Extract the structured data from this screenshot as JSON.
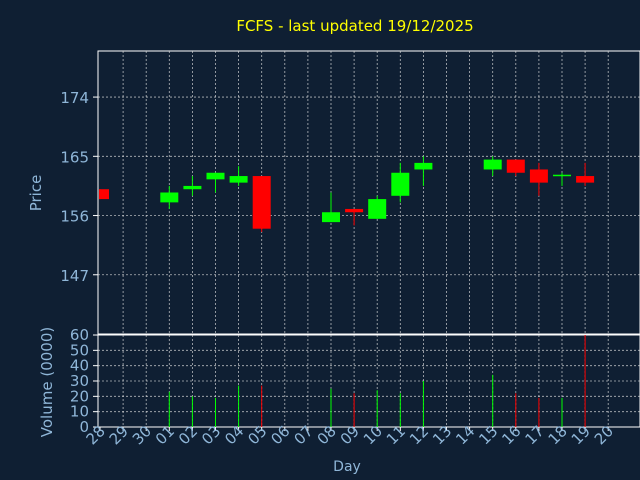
{
  "title": "FCFS - last updated 19/12/2025",
  "colors": {
    "background": "#0f1f33",
    "plot_background": "#0f1f33",
    "border": "#ffffff",
    "grid": "#dddddd",
    "title": "#ffff00",
    "text": "#8fb6d8",
    "up": "#00ff00",
    "down": "#ff0000"
  },
  "chart_data": [
    {
      "type": "candlestick",
      "title": "FCFS - last updated 19/12/2025",
      "ylabel": "Price",
      "ylim": [
        138,
        181
      ],
      "yticks": [
        147,
        156,
        165,
        174
      ],
      "grid": true,
      "categories": [
        "28",
        "29",
        "30",
        "01",
        "02",
        "03",
        "04",
        "05",
        "06",
        "07",
        "08",
        "09",
        "10",
        "11",
        "12",
        "13",
        "14",
        "15",
        "16",
        "17",
        "18",
        "19",
        "20"
      ],
      "series": [
        {
          "ohlc": [
            {
              "x": "28",
              "open": 160.0,
              "high": 160.0,
              "low": 158.5,
              "close": 158.5
            },
            {
              "x": "01",
              "open": 158.0,
              "high": 160.5,
              "low": 157.0,
              "close": 159.5
            },
            {
              "x": "02",
              "open": 160.0,
              "high": 162.0,
              "low": 159.0,
              "close": 160.5
            },
            {
              "x": "03",
              "open": 161.5,
              "high": 162.5,
              "low": 159.5,
              "close": 162.5
            },
            {
              "x": "04",
              "open": 161.0,
              "high": 163.5,
              "low": 160.5,
              "close": 162.0
            },
            {
              "x": "05",
              "open": 162.0,
              "high": 162.0,
              "low": 153.5,
              "close": 154.0
            },
            {
              "x": "08",
              "open": 155.0,
              "high": 159.5,
              "low": 155.0,
              "close": 156.5
            },
            {
              "x": "09",
              "open": 157.0,
              "high": 157.0,
              "low": 154.5,
              "close": 156.5
            },
            {
              "x": "10",
              "open": 155.5,
              "high": 159.0,
              "low": 155.5,
              "close": 158.5
            },
            {
              "x": "11",
              "open": 159.0,
              "high": 164.0,
              "low": 158.0,
              "close": 162.5
            },
            {
              "x": "12",
              "open": 163.0,
              "high": 165.0,
              "low": 160.5,
              "close": 164.0
            },
            {
              "x": "15",
              "open": 163.0,
              "high": 165.0,
              "low": 162.0,
              "close": 164.5
            },
            {
              "x": "16",
              "open": 164.5,
              "high": 164.5,
              "low": 162.0,
              "close": 162.5
            },
            {
              "x": "17",
              "open": 163.0,
              "high": 164.0,
              "low": 159.0,
              "close": 161.0
            },
            {
              "x": "18",
              "open": 162.0,
              "high": 162.5,
              "low": 160.5,
              "close": 162.2
            },
            {
              "x": "19",
              "open": 162.0,
              "high": 164.0,
              "low": 160.5,
              "close": 161.0
            }
          ]
        }
      ]
    },
    {
      "type": "bar",
      "xlabel": "Day",
      "ylabel": "Volume (0000)",
      "ylim": [
        0,
        60
      ],
      "yticks": [
        0,
        10,
        20,
        30,
        40,
        50,
        60
      ],
      "grid": true,
      "categories": [
        "28",
        "29",
        "30",
        "01",
        "02",
        "03",
        "04",
        "05",
        "06",
        "07",
        "08",
        "09",
        "10",
        "11",
        "12",
        "13",
        "14",
        "15",
        "16",
        "17",
        "18",
        "19",
        "20"
      ],
      "series": [
        {
          "bars": [
            {
              "x": "01",
              "value": 23,
              "direction": "up"
            },
            {
              "x": "02",
              "value": 20,
              "direction": "up"
            },
            {
              "x": "03",
              "value": 19,
              "direction": "up"
            },
            {
              "x": "04",
              "value": 27,
              "direction": "up"
            },
            {
              "x": "05",
              "value": 27,
              "direction": "down"
            },
            {
              "x": "08",
              "value": 25,
              "direction": "up"
            },
            {
              "x": "09",
              "value": 22,
              "direction": "down"
            },
            {
              "x": "10",
              "value": 24,
              "direction": "up"
            },
            {
              "x": "11",
              "value": 22,
              "direction": "up"
            },
            {
              "x": "12",
              "value": 30,
              "direction": "up"
            },
            {
              "x": "15",
              "value": 34,
              "direction": "up"
            },
            {
              "x": "16",
              "value": 22,
              "direction": "down"
            },
            {
              "x": "17",
              "value": 19,
              "direction": "down"
            },
            {
              "x": "18",
              "value": 19,
              "direction": "up"
            },
            {
              "x": "19",
              "value": 60,
              "direction": "down"
            }
          ]
        }
      ]
    }
  ]
}
